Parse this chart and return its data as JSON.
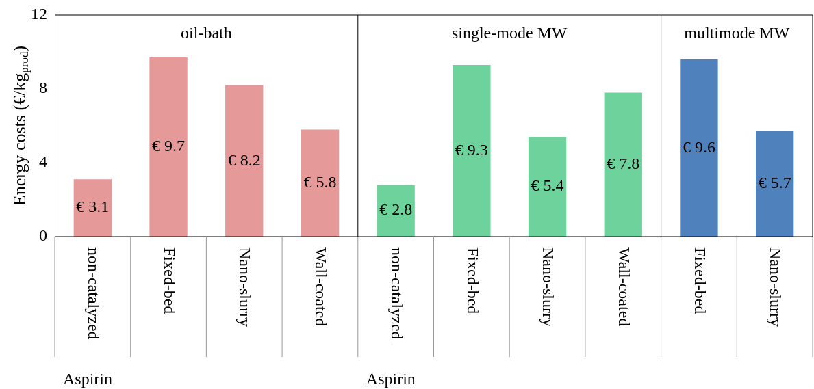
{
  "chart_data": {
    "type": "bar",
    "ylabel": "Energy costs (€/kg$_{prod}$)",
    "categories": [
      "non-catalyzed",
      "Fixed-bed",
      "Nano-slurry",
      "Wall-coated",
      "non-catalyzed",
      "Fixed-bed",
      "Nano-slurry",
      "Wall-coated",
      "Fixed-bed",
      "Nano-slurry"
    ],
    "values": [
      3.1,
      9.7,
      8.2,
      5.8,
      2.8,
      9.3,
      5.4,
      7.8,
      9.6,
      5.7
    ],
    "colors": [
      "#e59a99",
      "#e59a99",
      "#e59a99",
      "#e59a99",
      "#6dd29b",
      "#6dd29b",
      "#6dd29b",
      "#6dd29b",
      "#4f81bd",
      "#4f81bd"
    ],
    "value_labels": [
      "€ 3.1",
      "€ 9.7",
      "€ 8.2",
      "€ 5.8",
      "€ 2.8",
      "€ 9.3",
      "€ 5.4",
      "€ 7.8",
      "€ 9.6",
      "€ 5.7"
    ],
    "ylim": [
      0,
      12
    ],
    "yticks": [
      0,
      4,
      8,
      12
    ],
    "grid": false,
    "legend": false,
    "annotations": [
      "oil-bath",
      "single-mode MW",
      "multimode MW",
      "Aspirin",
      "Aspirin"
    ]
  }
}
